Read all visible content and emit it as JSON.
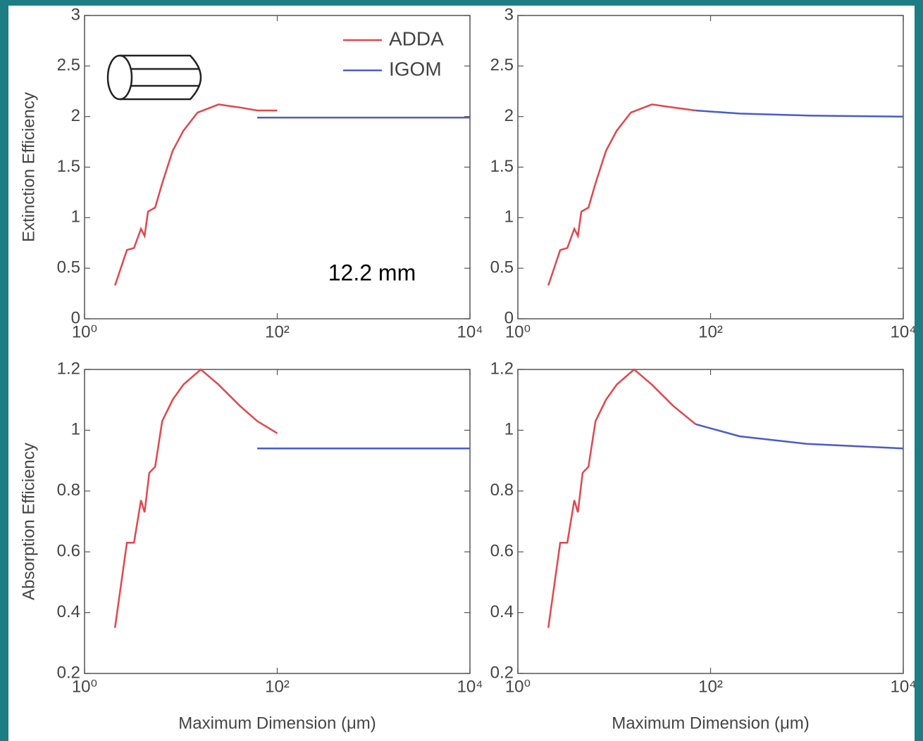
{
  "chart_data": [
    {
      "type": "line",
      "ylabel": "Extinction Efficiency",
      "xscale": "log",
      "xlim": [
        1,
        10000
      ],
      "xticks": [
        {
          "value": 1,
          "label": "10⁰"
        },
        {
          "value": 100,
          "label": "10²"
        },
        {
          "value": 10000,
          "label": "10⁴"
        }
      ],
      "ylim": [
        0,
        3
      ],
      "yticks": [
        0,
        0.5,
        1,
        1.5,
        2,
        2.5,
        3
      ],
      "legend": "upper right",
      "annotation": "12.2 mm",
      "series": [
        {
          "name": "ADDA",
          "color": "#e0474c",
          "x": [
            2.07,
            2.75,
            3.26,
            3.85,
            4.2,
            4.56,
            5.4,
            6.4,
            8.2,
            10.6,
            14.9,
            24.6,
            41,
            62,
            100
          ],
          "values": [
            0.33,
            0.68,
            0.7,
            0.89,
            0.82,
            1.06,
            1.1,
            1.34,
            1.66,
            1.86,
            2.04,
            2.12,
            2.09,
            2.06,
            2.06
          ]
        },
        {
          "name": "IGOM",
          "color": "#4a5bc8",
          "x": [
            62,
            10000
          ],
          "values": [
            1.99,
            1.99
          ]
        }
      ]
    },
    {
      "type": "line",
      "xscale": "log",
      "xlim": [
        1,
        10000
      ],
      "xticks": [
        {
          "value": 1,
          "label": "10⁰"
        },
        {
          "value": 100,
          "label": "10²"
        },
        {
          "value": 10000,
          "label": "10⁴"
        }
      ],
      "ylim": [
        0,
        3
      ],
      "yticks": [
        0,
        0.5,
        1,
        1.5,
        2,
        2.5,
        3
      ],
      "series": [
        {
          "color": "#e0474c",
          "x": [
            2.07,
            2.75,
            3.26,
            3.85,
            4.2,
            4.56,
            5.4,
            6.4,
            8.2,
            10.6,
            14.9,
            24.6,
            41,
            70
          ],
          "values": [
            0.33,
            0.68,
            0.7,
            0.89,
            0.82,
            1.06,
            1.1,
            1.34,
            1.66,
            1.86,
            2.04,
            2.12,
            2.09,
            2.06
          ]
        },
        {
          "color": "#4a5bc8",
          "x": [
            70,
            200,
            1000,
            10000
          ],
          "values": [
            2.06,
            2.03,
            2.01,
            2.0
          ]
        }
      ]
    },
    {
      "type": "line",
      "ylabel": "Absorption Efficiency",
      "xlabel": "Maximum Dimension (μm)",
      "xscale": "log",
      "xlim": [
        1,
        10000
      ],
      "xticks": [
        {
          "value": 1,
          "label": "10⁰"
        },
        {
          "value": 100,
          "label": "10²"
        },
        {
          "value": 10000,
          "label": "10⁴"
        }
      ],
      "ylim": [
        0.2,
        1.2
      ],
      "yticks": [
        0.2,
        0.4,
        0.6,
        0.8,
        1,
        1.2
      ],
      "series": [
        {
          "color": "#e0474c",
          "x": [
            2.07,
            2.75,
            3.26,
            3.85,
            4.2,
            4.7,
            5.4,
            6.4,
            8.2,
            10.6,
            16.1,
            24.6,
            41,
            62,
            100
          ],
          "values": [
            0.35,
            0.63,
            0.63,
            0.77,
            0.73,
            0.86,
            0.88,
            1.03,
            1.1,
            1.15,
            1.2,
            1.15,
            1.08,
            1.03,
            0.99
          ]
        },
        {
          "color": "#4a5bc8",
          "x": [
            62,
            10000
          ],
          "values": [
            0.94,
            0.94
          ]
        }
      ]
    },
    {
      "type": "line",
      "xlabel": "Maximum Dimension (μm)",
      "xscale": "log",
      "xlim": [
        1,
        10000
      ],
      "xticks": [
        {
          "value": 1,
          "label": "10⁰"
        },
        {
          "value": 100,
          "label": "10²"
        },
        {
          "value": 10000,
          "label": "10⁴"
        }
      ],
      "ylim": [
        0.2,
        1.2
      ],
      "yticks": [
        0.2,
        0.4,
        0.6,
        0.8,
        1,
        1.2
      ],
      "series": [
        {
          "color": "#e0474c",
          "x": [
            2.07,
            2.75,
            3.26,
            3.85,
            4.2,
            4.7,
            5.4,
            6.4,
            8.2,
            10.6,
            16.1,
            24.6,
            41,
            70
          ],
          "values": [
            0.35,
            0.63,
            0.63,
            0.77,
            0.73,
            0.86,
            0.88,
            1.03,
            1.1,
            1.15,
            1.2,
            1.15,
            1.08,
            1.02
          ]
        },
        {
          "color": "#4a5bc8",
          "x": [
            70,
            200,
            1000,
            10000
          ],
          "values": [
            1.02,
            0.98,
            0.955,
            0.94
          ]
        }
      ]
    }
  ]
}
